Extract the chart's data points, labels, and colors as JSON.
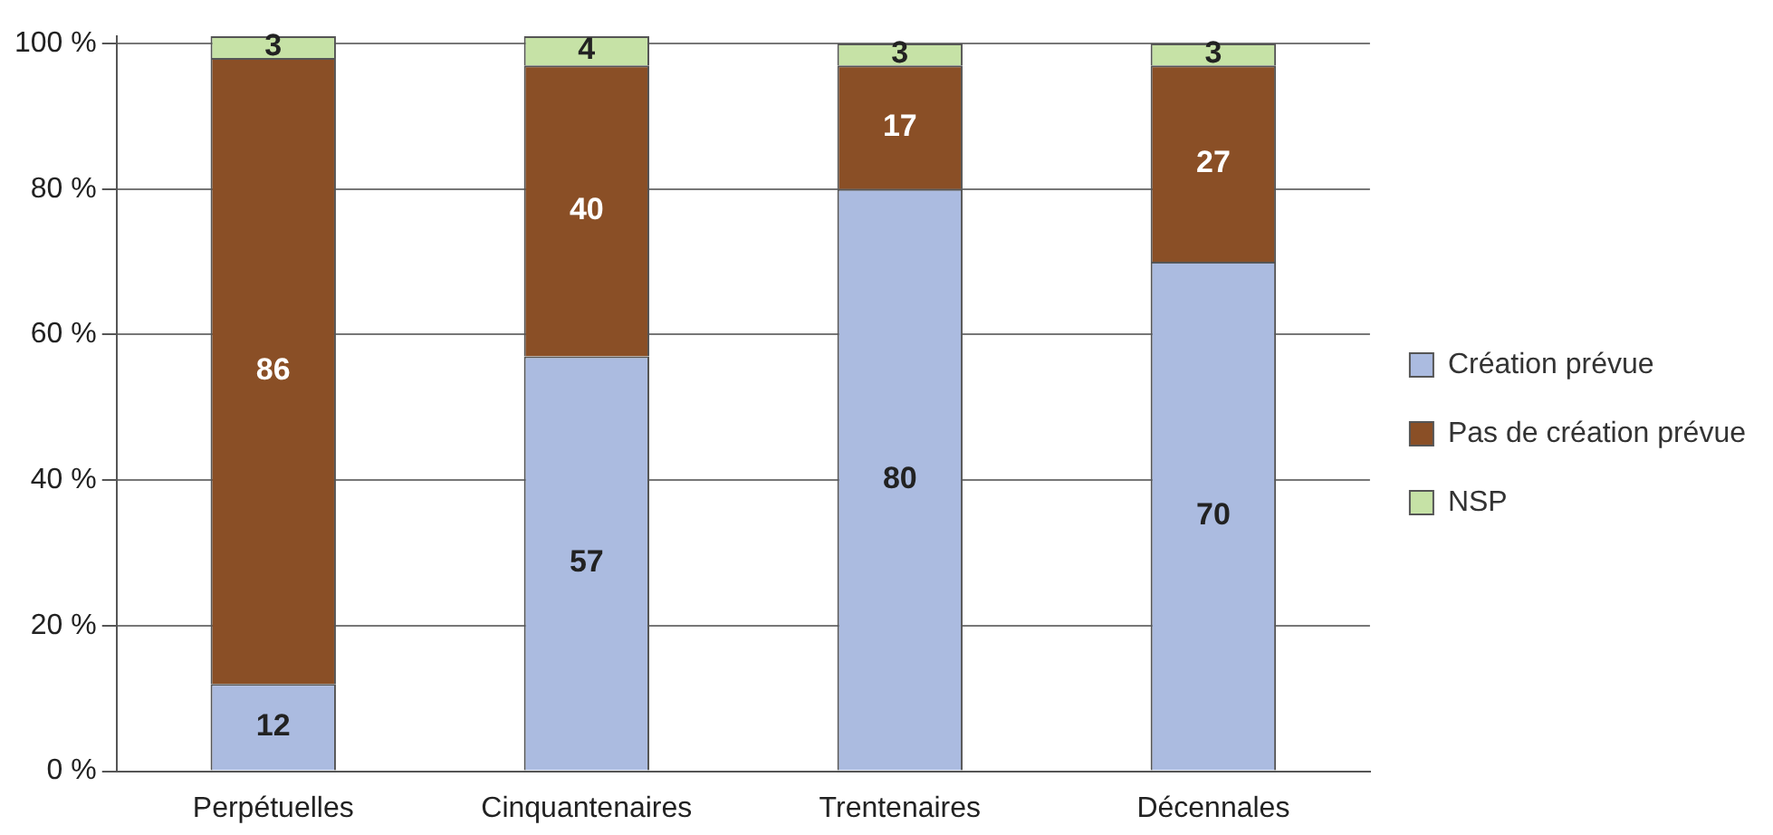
{
  "chart_data": {
    "type": "bar",
    "stacked": true,
    "categories": [
      "Perpétuelles",
      "Cinquantenaires",
      "Trentenaires",
      "Décennales"
    ],
    "series": [
      {
        "name": "Création prévue",
        "color": "#abbbe0",
        "values": [
          12,
          57,
          80,
          70
        ]
      },
      {
        "name": "Pas de création prévue",
        "color": "#8a4f26",
        "values": [
          86,
          40,
          17,
          27
        ]
      },
      {
        "name": "NSP",
        "color": "#c6e2a6",
        "values": [
          3,
          4,
          3,
          3
        ]
      }
    ],
    "ylim": [
      0,
      101
    ],
    "yticks": [
      {
        "value": 0,
        "label": "0 %"
      },
      {
        "value": 20,
        "label": "20 %"
      },
      {
        "value": 40,
        "label": "40 %"
      },
      {
        "value": 60,
        "label": "60 %"
      },
      {
        "value": 80,
        "label": "80 %"
      },
      {
        "value": 100,
        "label": "100 %"
      }
    ],
    "grid": "y",
    "legend": "right",
    "data_labels": true
  }
}
